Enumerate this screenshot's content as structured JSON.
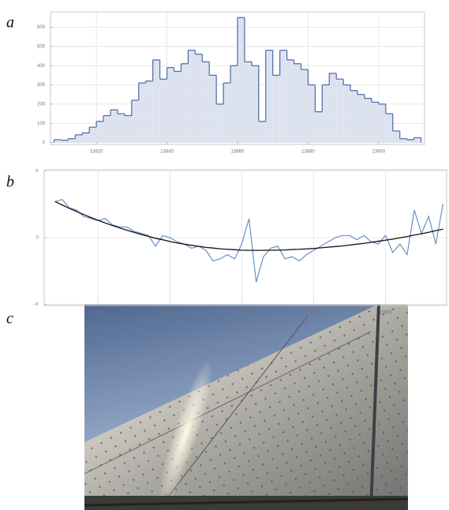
{
  "panel_labels": [
    "a",
    "b",
    "c"
  ],
  "chart_data": [
    {
      "type": "histogram",
      "bins": [
        13808,
        13810,
        13812,
        13814,
        13816,
        13818,
        13820,
        13822,
        13824,
        13826,
        13828,
        13830,
        13832,
        13834,
        13836,
        13838,
        13840,
        13842,
        13844,
        13846,
        13848,
        13850,
        13852,
        13854,
        13856,
        13858,
        13860,
        13862,
        13864,
        13866,
        13868,
        13870,
        13872,
        13874,
        13876,
        13878,
        13880,
        13882,
        13884,
        13886,
        13888,
        13890,
        13892,
        13894,
        13896,
        13898,
        13900,
        13902,
        13904,
        13906,
        13908,
        13910,
        13912
      ],
      "values": [
        15,
        12,
        20,
        40,
        50,
        80,
        110,
        140,
        170,
        150,
        140,
        220,
        310,
        320,
        430,
        330,
        390,
        370,
        410,
        480,
        460,
        420,
        350,
        200,
        310,
        400,
        650,
        420,
        400,
        110,
        480,
        350,
        480,
        430,
        410,
        380,
        300,
        160,
        300,
        360,
        330,
        300,
        270,
        250,
        230,
        210,
        200,
        150,
        60,
        20,
        15,
        25
      ],
      "color": "#4a69a6",
      "fill": "#dde3ee",
      "xlim": [
        13807,
        13913
      ],
      "xticks": [
        13820,
        13840,
        13860,
        13880,
        13900
      ],
      "ylim": [
        -10,
        680
      ],
      "yticks": [
        0,
        100,
        200,
        300,
        400,
        500,
        600
      ],
      "grid": true
    },
    {
      "type": "line",
      "x": [
        13808,
        13810,
        13812,
        13814,
        13816,
        13818,
        13820,
        13822,
        13824,
        13826,
        13828,
        13830,
        13832,
        13834,
        13836,
        13838,
        13840,
        13842,
        13844,
        13846,
        13848,
        13850,
        13852,
        13854,
        13856,
        13858,
        13860,
        13862,
        13864,
        13866,
        13868,
        13870,
        13872,
        13874,
        13876,
        13878,
        13880,
        13882,
        13884,
        13886,
        13888,
        13890,
        13892,
        13894,
        13896,
        13898,
        13900,
        13902,
        13904,
        13906,
        13908,
        13910,
        13912,
        13914,
        13916
      ],
      "series": [
        {
          "color": "#6a8fc8",
          "values": [
            1.7,
            1.8,
            1.4,
            1.3,
            1.0,
            0.9,
            0.8,
            0.9,
            0.6,
            0.5,
            0.5,
            0.3,
            0.2,
            0.1,
            -0.4,
            0.1,
            0.0,
            -0.2,
            -0.3,
            -0.5,
            -0.4,
            -0.6,
            -1.1,
            -1.0,
            -0.8,
            -1.0,
            -0.3,
            0.9,
            -2.1,
            -0.9,
            -0.5,
            -0.4,
            -1.0,
            -0.9,
            -1.1,
            -0.8,
            -0.6,
            -0.4,
            -0.2,
            0.0,
            0.1,
            0.1,
            -0.1,
            0.1,
            -0.2,
            -0.3,
            0.1,
            -0.7,
            -0.3,
            -0.8,
            1.3,
            0.2,
            1.0,
            -0.3,
            1.6
          ]
        },
        {
          "color": "#111111",
          "values": [
            1.7,
            1.54,
            1.38,
            1.23,
            1.09,
            0.95,
            0.82,
            0.69,
            0.57,
            0.46,
            0.35,
            0.25,
            0.15,
            0.06,
            -0.03,
            -0.1,
            -0.18,
            -0.25,
            -0.31,
            -0.36,
            -0.41,
            -0.46,
            -0.49,
            -0.53,
            -0.55,
            -0.57,
            -0.59,
            -0.6,
            -0.6,
            -0.6,
            -0.59,
            -0.59,
            -0.58,
            -0.56,
            -0.55,
            -0.53,
            -0.51,
            -0.48,
            -0.45,
            -0.42,
            -0.39,
            -0.35,
            -0.31,
            -0.27,
            -0.22,
            -0.17,
            -0.12,
            -0.07,
            -0.01,
            0.05,
            0.12,
            0.18,
            0.25,
            0.33,
            0.4
          ]
        }
      ],
      "xlim": [
        13805,
        13917
      ],
      "xticks": [
        13820,
        13840,
        13860,
        13880,
        13900
      ],
      "ylim": [
        -3.2,
        3.2
      ],
      "yticks": [
        {
          "value": 3.14159,
          "label": "π"
        },
        0,
        {
          "value": -3.14159,
          "label": "−π"
        }
      ],
      "grid": true
    }
  ]
}
